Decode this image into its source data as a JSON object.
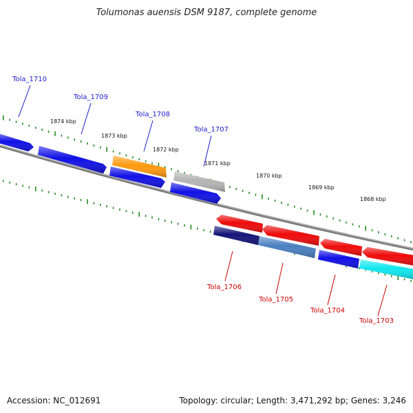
{
  "title": "Tolumonas auensis DSM 9187, complete genome",
  "footer": {
    "accession": "Accession: NC_012691",
    "summary": "Topology: circular; Length: 3,471,292 bp; Genes: 3,246"
  },
  "colors": {
    "backbone": "#7a7a7a",
    "tick": "#1f8a1f",
    "forward_label": "#1a1acc",
    "reverse_label": "#cc0000",
    "blue": "#1010e6",
    "orange": "#ff9a10",
    "gray": "#b4b4b4",
    "red": "#ee0a0a",
    "navy": "#14147a",
    "steelblue": "#4a7fc0",
    "cyan": "#10e6ee"
  },
  "scale": {
    "labels": [
      "1874 kbp",
      "1873 kbp",
      "1872 kbp",
      "1871 kbp",
      "1870 kbp",
      "1869 kbp",
      "1868 kbp"
    ]
  },
  "forward_genes": [
    {
      "name": "Tola_1710",
      "color": "blue"
    },
    {
      "name": "Tola_1709",
      "color": "blue"
    },
    {
      "name": "Tola_1708",
      "color": "orange"
    },
    {
      "name": "Tola_1707",
      "color": "gray"
    }
  ],
  "forward_inner_genes": [
    {
      "name": "",
      "color": "blue"
    },
    {
      "name": "",
      "color": "blue"
    }
  ],
  "reverse_genes": [
    {
      "name": "Tola_1706",
      "color": "navy"
    },
    {
      "name": "Tola_1705",
      "color": "steelblue"
    },
    {
      "name": "Tola_1704",
      "color": "blue"
    },
    {
      "name": "Tola_1703",
      "color": "cyan"
    }
  ],
  "reverse_outer_genes": [
    {
      "name": "",
      "color": "red"
    },
    {
      "name": "",
      "color": "red"
    },
    {
      "name": "",
      "color": "red"
    },
    {
      "name": "",
      "color": "red"
    }
  ]
}
